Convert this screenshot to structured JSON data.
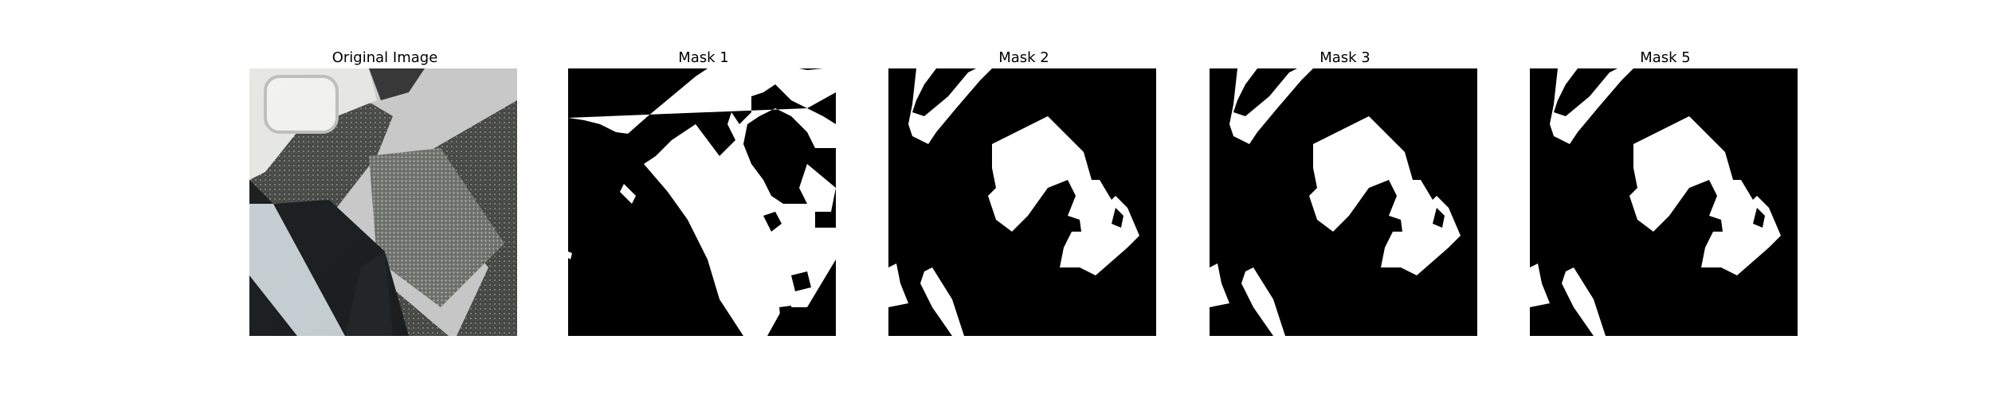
{
  "figure": {
    "panels": [
      {
        "title": "Original Image",
        "kind": "photo"
      },
      {
        "title": "Mask 1",
        "kind": "mask"
      },
      {
        "title": "Mask 2",
        "kind": "mask"
      },
      {
        "title": "Mask 3",
        "kind": "mask"
      },
      {
        "title": "Mask 5",
        "kind": "mask"
      }
    ]
  },
  "colors": {
    "mask_background": "#000000",
    "mask_foreground": "#ffffff"
  }
}
